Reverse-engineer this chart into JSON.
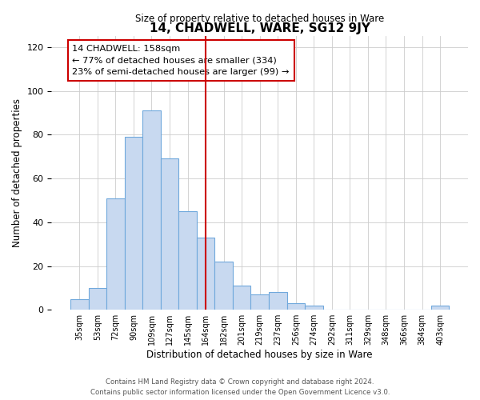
{
  "title": "14, CHADWELL, WARE, SG12 9JY",
  "subtitle": "Size of property relative to detached houses in Ware",
  "xlabel": "Distribution of detached houses by size in Ware",
  "ylabel": "Number of detached properties",
  "footer_line1": "Contains HM Land Registry data © Crown copyright and database right 2024.",
  "footer_line2": "Contains public sector information licensed under the Open Government Licence v3.0.",
  "bar_labels": [
    "35sqm",
    "53sqm",
    "72sqm",
    "90sqm",
    "109sqm",
    "127sqm",
    "145sqm",
    "164sqm",
    "182sqm",
    "201sqm",
    "219sqm",
    "237sqm",
    "256sqm",
    "274sqm",
    "292sqm",
    "311sqm",
    "329sqm",
    "348sqm",
    "366sqm",
    "384sqm",
    "403sqm"
  ],
  "bar_values": [
    5,
    10,
    51,
    79,
    91,
    69,
    45,
    33,
    22,
    11,
    7,
    8,
    3,
    2,
    0,
    0,
    0,
    0,
    0,
    0,
    2
  ],
  "bar_color": "#c8d9f0",
  "bar_edge_color": "#6fa8dc",
  "vline_x": 7,
  "vline_color": "#cc0000",
  "annotation_title": "14 CHADWELL: 158sqm",
  "annotation_line1": "← 77% of detached houses are smaller (334)",
  "annotation_line2": "23% of semi-detached houses are larger (99) →",
  "annotation_box_color": "#ffffff",
  "annotation_box_edge": "#cc0000",
  "ylim": [
    0,
    125
  ],
  "yticks": [
    0,
    20,
    40,
    60,
    80,
    100,
    120
  ],
  "background_color": "#ffffff",
  "grid_color": "#cccccc"
}
